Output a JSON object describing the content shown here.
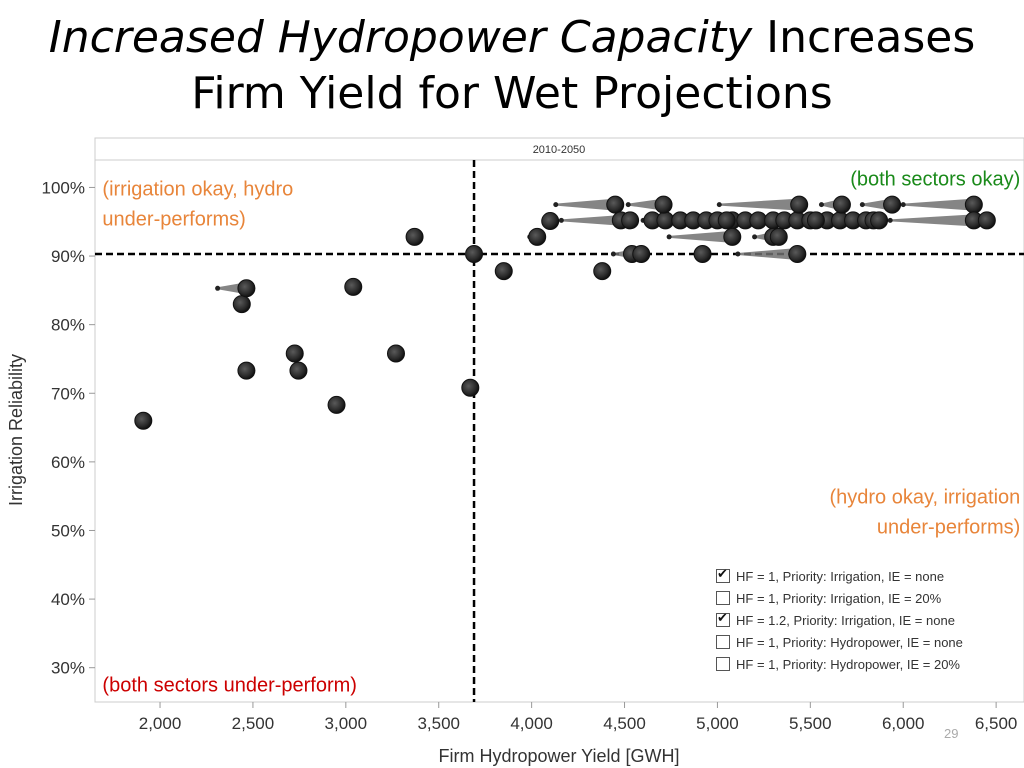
{
  "slide": {
    "title_italic": "Increased Hydropower Capacity",
    "title_rest_line1": " Increases",
    "title_line2": "Firm Yield for Wet Projections",
    "slide_number": "29"
  },
  "chart_data": {
    "type": "scatter",
    "title": "2010-2050",
    "xlabel": "Firm Hydropower Yield [GWH]",
    "ylabel": "Irrigation Reliability",
    "xlim": [
      1650,
      6650
    ],
    "ylim": [
      25,
      104
    ],
    "x_ticks": [
      2000,
      2500,
      3000,
      3500,
      4000,
      4500,
      5000,
      5500,
      6000,
      6500
    ],
    "x_tick_labels": [
      "2,000",
      "2,500",
      "3,000",
      "3,500",
      "4,000",
      "4,500",
      "5,000",
      "5,500",
      "6,000",
      "6,500"
    ],
    "y_ticks": [
      30,
      40,
      50,
      60,
      70,
      80,
      90,
      100
    ],
    "y_tick_labels": [
      "30%",
      "40%",
      "50%",
      "60%",
      "70%",
      "80%",
      "90%",
      "100%"
    ],
    "threshold_x": 3690,
    "threshold_y": 90.3,
    "quadrant_labels": [
      {
        "text_lines": [
          "(irrigation okay, hydro",
          "under-performs)"
        ],
        "color": "#e8853a",
        "x": 1690,
        "y": 98.8,
        "align": "start"
      },
      {
        "text_lines": [
          "(both sectors okay)"
        ],
        "color": "#1a8a1a",
        "x": 6630,
        "y": 100.3,
        "align": "end"
      },
      {
        "text_lines": [
          "(hydro okay, irrigation",
          "under-performs)"
        ],
        "color": "#e8853a",
        "x": 6630,
        "y": 53.9,
        "align": "end"
      },
      {
        "text_lines": [
          "(both sectors under-perform)"
        ],
        "color": "#cc0000",
        "x": 1690,
        "y": 26.5,
        "align": "start"
      }
    ],
    "points": [
      {
        "x": 1910,
        "y": 66.0
      },
      {
        "x": 2440,
        "y": 83.0
      },
      {
        "x": 2465,
        "y": 85.3
      },
      {
        "x": 2465,
        "y": 73.3
      },
      {
        "x": 2725,
        "y": 75.8
      },
      {
        "x": 2745,
        "y": 73.3
      },
      {
        "x": 2950,
        "y": 68.3
      },
      {
        "x": 3040,
        "y": 85.5
      },
      {
        "x": 3270,
        "y": 75.8
      },
      {
        "x": 3370,
        "y": 92.8
      },
      {
        "x": 3670,
        "y": 70.8
      },
      {
        "x": 3690,
        "y": 90.3
      },
      {
        "x": 3850,
        "y": 87.8
      },
      {
        "x": 4030,
        "y": 92.8
      },
      {
        "x": 4100,
        "y": 95.1
      },
      {
        "x": 4380,
        "y": 87.8
      },
      {
        "x": 4450,
        "y": 97.5
      },
      {
        "x": 4480,
        "y": 95.2
      },
      {
        "x": 4530,
        "y": 95.2
      },
      {
        "x": 4540,
        "y": 90.3
      },
      {
        "x": 4590,
        "y": 90.3
      },
      {
        "x": 4710,
        "y": 97.5
      },
      {
        "x": 4920,
        "y": 90.3
      },
      {
        "x": 5050,
        "y": 95.2
      },
      {
        "x": 5080,
        "y": 92.8
      },
      {
        "x": 5300,
        "y": 92.8
      },
      {
        "x": 5330,
        "y": 92.8
      },
      {
        "x": 5430,
        "y": 90.3
      },
      {
        "x": 5440,
        "y": 97.5
      },
      {
        "x": 5530,
        "y": 95.2
      },
      {
        "x": 5670,
        "y": 97.5
      },
      {
        "x": 5870,
        "y": 95.2
      },
      {
        "x": 5940,
        "y": 97.5
      },
      {
        "x": 6380,
        "y": 97.5
      },
      {
        "x": 6380,
        "y": 95.2
      },
      {
        "x": 6450,
        "y": 95.2
      }
    ],
    "arrows": [
      {
        "x1": 2310,
        "y1": 85.3,
        "x2": 2465,
        "y2": 85.3
      },
      {
        "x1": 3990,
        "y1": 92.8,
        "x2": 4030,
        "y2": 92.8
      },
      {
        "x1": 4130,
        "y1": 97.5,
        "x2": 4450,
        "y2": 97.5
      },
      {
        "x1": 4520,
        "y1": 97.5,
        "x2": 4710,
        "y2": 97.5
      },
      {
        "x1": 4160,
        "y1": 95.2,
        "x2": 4530,
        "y2": 95.2
      },
      {
        "x1": 4600,
        "y1": 95.2,
        "x2": 5870,
        "y2": 95.2
      },
      {
        "x1": 4440,
        "y1": 90.3,
        "x2": 4590,
        "y2": 90.3
      },
      {
        "x1": 4740,
        "y1": 92.8,
        "x2": 5080,
        "y2": 92.8
      },
      {
        "x1": 5010,
        "y1": 97.5,
        "x2": 5440,
        "y2": 97.5
      },
      {
        "x1": 5200,
        "y1": 92.8,
        "x2": 5330,
        "y2": 92.8
      },
      {
        "x1": 5110,
        "y1": 90.3,
        "x2": 5430,
        "y2": 90.3
      },
      {
        "x1": 5560,
        "y1": 97.5,
        "x2": 5670,
        "y2": 97.5
      },
      {
        "x1": 5780,
        "y1": 97.5,
        "x2": 5940,
        "y2": 97.5
      },
      {
        "x1": 5930,
        "y1": 95.2,
        "x2": 6380,
        "y2": 95.2
      },
      {
        "x1": 6000,
        "y1": 97.5,
        "x2": 6380,
        "y2": 97.5
      }
    ],
    "cluster_x": [
      4650,
      4720,
      4800,
      4870,
      4940,
      5000,
      5080,
      5150,
      5220,
      5300,
      5360,
      5430,
      5500,
      5590,
      5660,
      5730,
      5800,
      5840
    ],
    "cluster_y": 95.2,
    "legend": [
      {
        "label": "HF = 1, Priority: Irrigation, IE = none",
        "checked": true
      },
      {
        "label": "HF = 1, Priority: Irrigation, IE = 20%",
        "checked": false
      },
      {
        "label": "HF = 1.2, Priority: Irrigation, IE = none",
        "checked": true
      },
      {
        "label": "HF = 1, Priority: Hydropower, IE = none",
        "checked": false
      },
      {
        "label": "HF = 1, Priority: Hydropower, IE = 20%",
        "checked": false
      }
    ],
    "grid": false,
    "marker_color": "#333333",
    "arrow_color": "#707070"
  }
}
